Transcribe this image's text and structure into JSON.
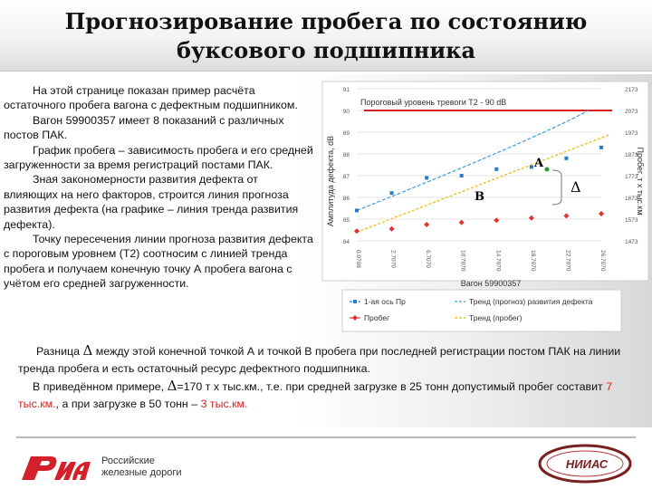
{
  "header": {
    "title_line1": "Прогнозирование пробега по состоянию",
    "title_line2": "буксового подшипника"
  },
  "left_text": {
    "p1": "На этой странице показан пример расчёта остаточного пробега вагона с дефектным подшипником.",
    "p2": "Вагон 59900357 имеет 8 показаний с различных постов ПАК.",
    "p3": "График пробега – зависимость пробега и его средней загруженности за время регистраций постами ПАК.",
    "p4": "Зная закономерности развития дефекта от влияющих на него факторов, строится линия прогноза развития дефекта (на графике – линия тренда развития дефекта).",
    "p5": "Точку пересечения линии прогноза развития дефекта с пороговым уровнем (Т2) соотносим с линией тренда пробега и получаем конечную точку А пробега вагона с учётом его средней загруженности."
  },
  "bottom_text": {
    "diff_pre": "Разница",
    "diff_post": "между этой конечной точкой А и точкой В пробега при последней регистрации постом ПАК на линии тренда пробега и есть остаточный ресурс дефектного подшипника.",
    "example_pre": "В приведённом примере,",
    "example_mid": "=170 т х тыс.км., т.е. при средней загрузке в 25 тонн допустимый пробег составит",
    "val1": "7 тыс.км.",
    "example_mid2": ", а при загрузке в 50 тонн –",
    "val2": "3 тыс.км."
  },
  "delta_symbol": "Δ",
  "chart_data": {
    "type": "line",
    "threshold_label": "Пороговый уровень тревоги Т2 - 90 dB",
    "ylabel_left": "Амплитуда дефекта, dB",
    "ylabel_right": "Пробег, т х тыс.км",
    "xlabel": "Вагон 59900357",
    "yticks_left": [
      "91",
      "90",
      "89",
      "88",
      "87",
      "86",
      "85",
      "84"
    ],
    "yticks_right": [
      "2173",
      "2073",
      "1973",
      "1873",
      "1773",
      "1673",
      "1573",
      "1473"
    ],
    "xticks": [
      "0.0708",
      "2.7070",
      "6.7070",
      "10.7070",
      "14.7070",
      "18.7070",
      "22.7070",
      "26.7070"
    ],
    "ylim_left": [
      84,
      91
    ],
    "threshold": 90,
    "defect_series": {
      "name": "1-ая ось Пр",
      "values": [
        85.4,
        86.2,
        86.9,
        87.0,
        87.3,
        87.4,
        87.8,
        88.3
      ]
    },
    "mileage_series": {
      "name": "Пробег",
      "values": [
        84.45,
        84.55,
        84.75,
        84.85,
        84.95,
        85.05,
        85.15,
        85.25
      ]
    },
    "legend": [
      "1-ая ось Пр",
      "Тренд (прогноз) развития дефекта",
      "Пробег",
      "Тренд (пробег)"
    ],
    "point_a_label": "A",
    "point_b_label": "B",
    "delta_label": "Δ"
  },
  "footer": {
    "rzd_line1": "Российские",
    "rzd_line2": "железные дороги",
    "niias_label": "НИИАС"
  },
  "colors": {
    "threshold": "#d62020",
    "defect": "#2a78d0",
    "mileage": "#e03030",
    "trend_mileage": "#f0c020",
    "trend_defect": "#3aa0e0",
    "rzd": "#d3202a"
  }
}
